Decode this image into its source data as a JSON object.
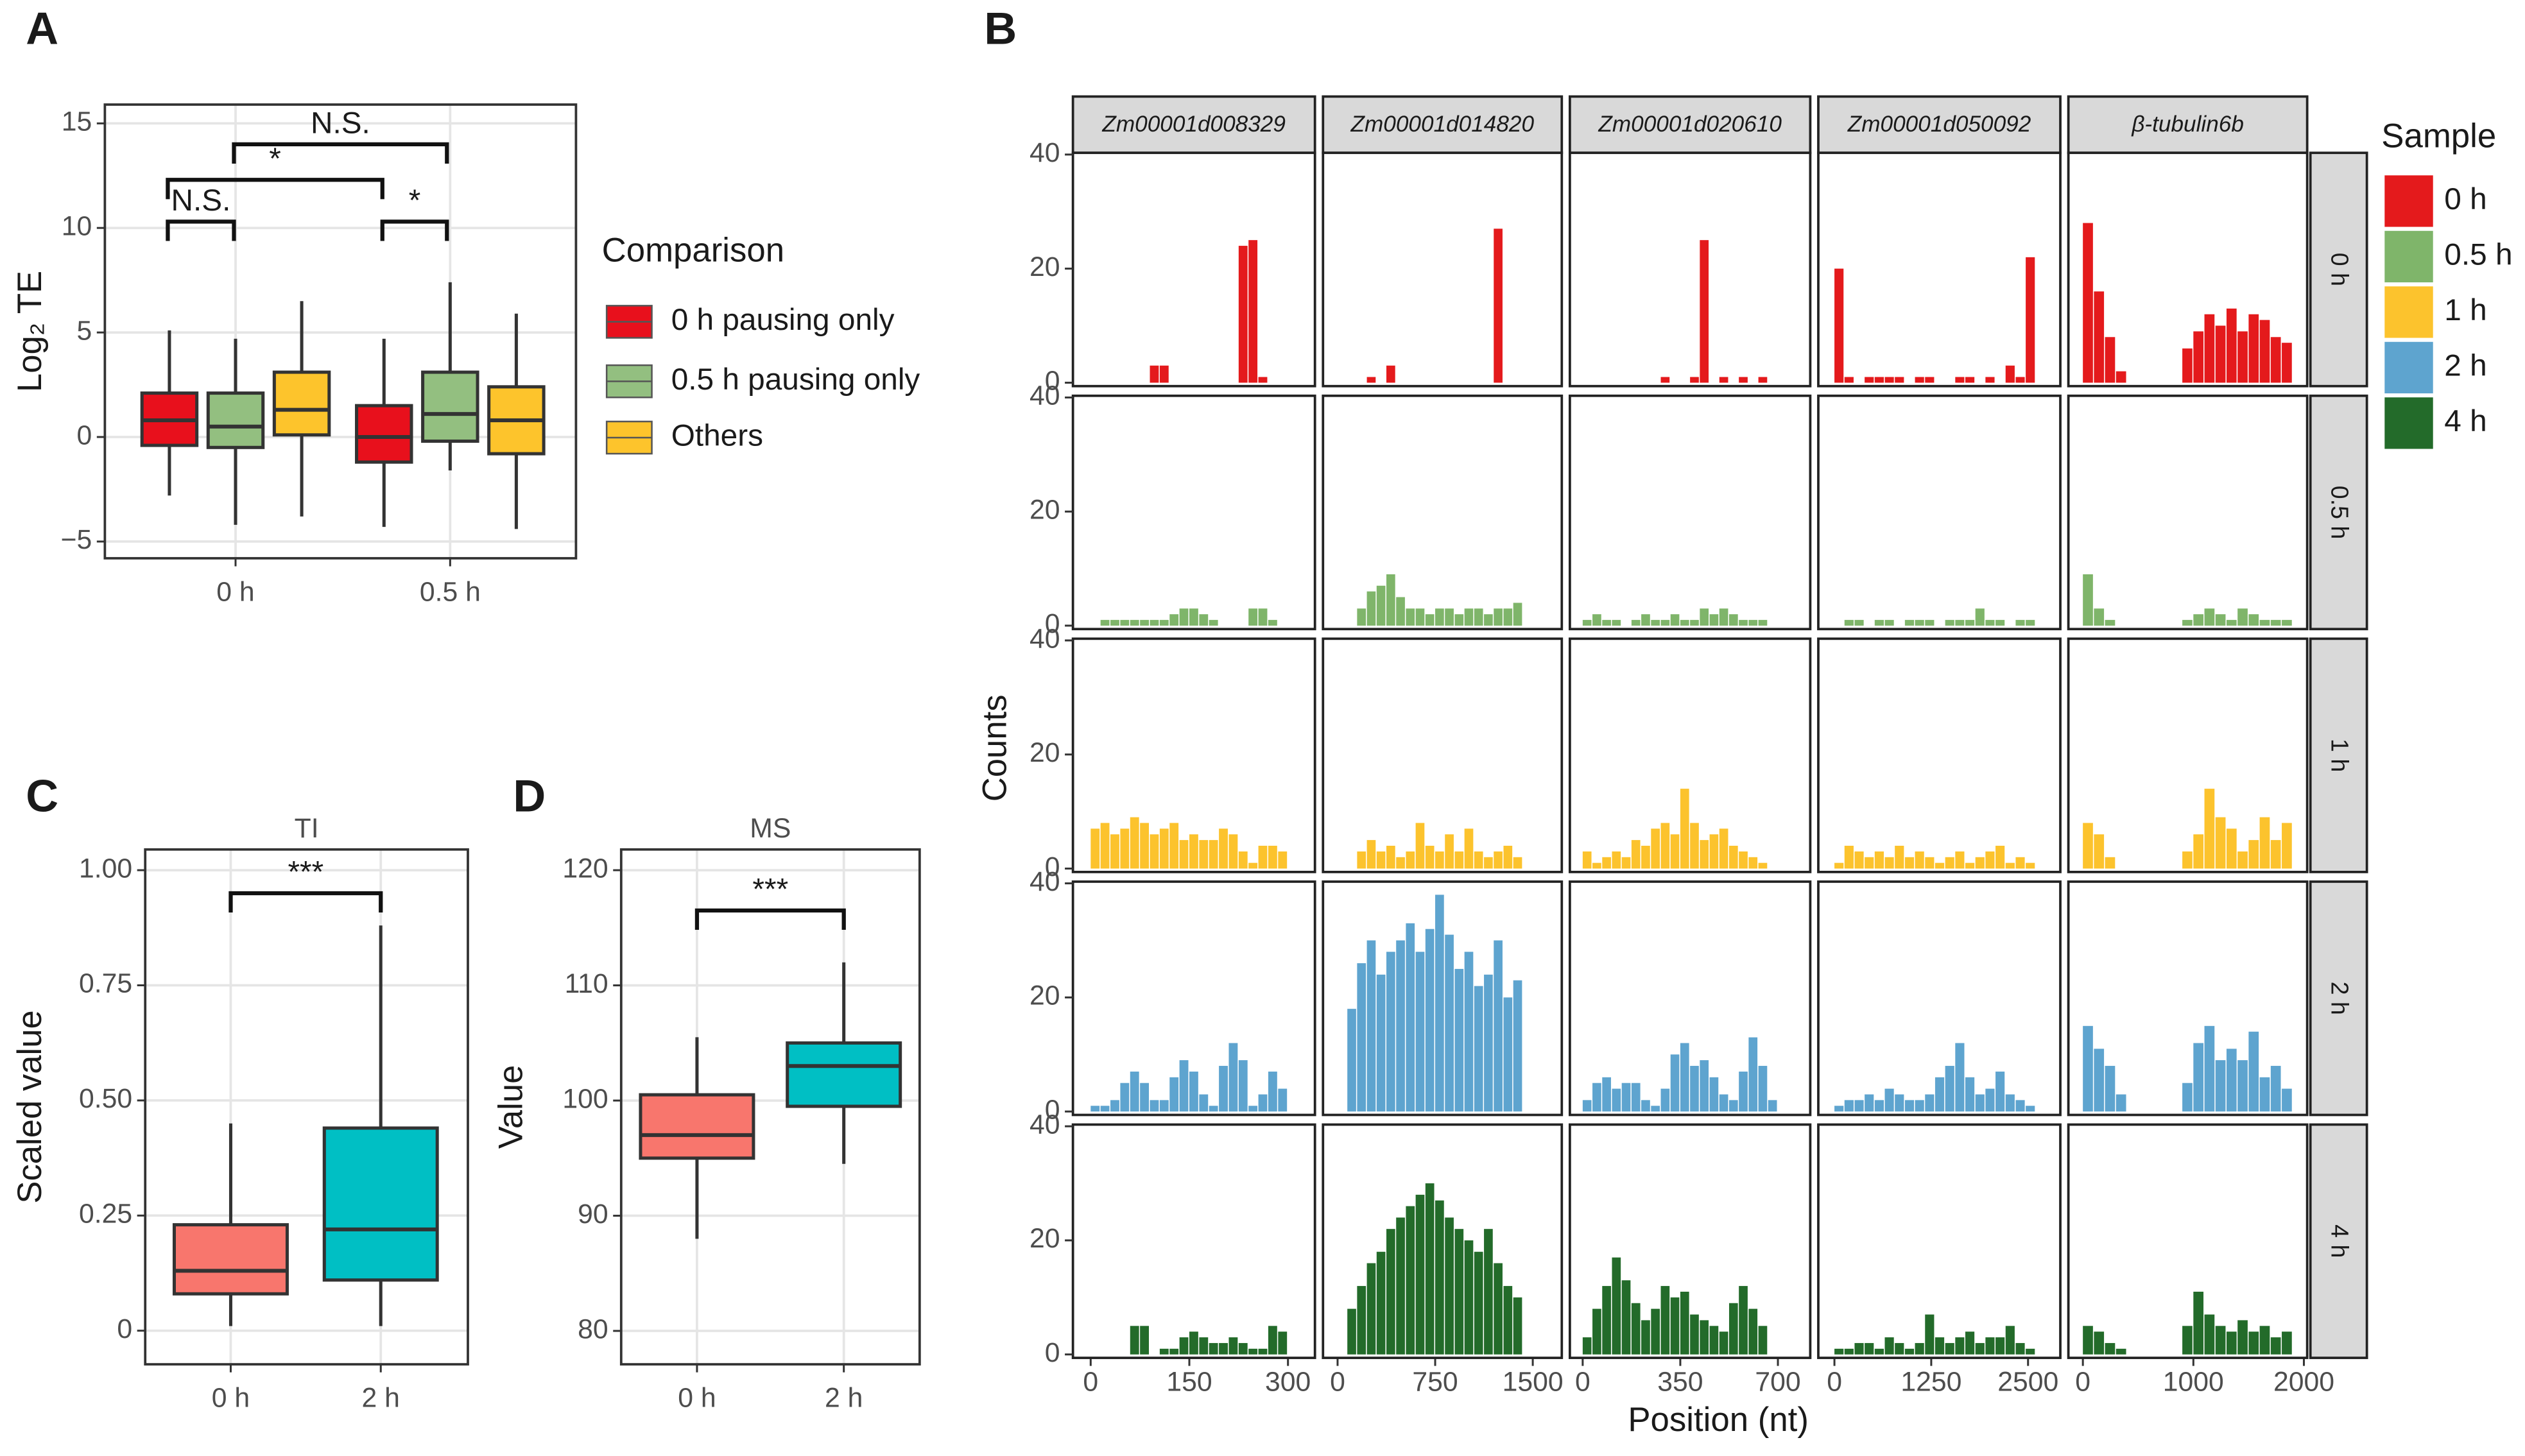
{
  "chart_data": [
    {
      "type": "box",
      "label": "A",
      "ylabel": "Log₂ TE",
      "legend_title": "Comparison",
      "categories": [
        "0 h",
        "0.5 h"
      ],
      "series": [
        {
          "name": "0 h pausing only",
          "color": "#e8101c",
          "values": [
            [
              -2.8,
              -0.4,
              0.8,
              2.1,
              5.1
            ],
            [
              -4.3,
              -1.2,
              0.0,
              1.5,
              4.7
            ]
          ]
        },
        {
          "name": "0.5 h pausing only",
          "color": "#93bf80",
          "values": [
            [
              -4.2,
              -0.5,
              0.5,
              2.1,
              4.7
            ],
            [
              -1.6,
              -0.2,
              1.1,
              3.1,
              7.4
            ]
          ]
        },
        {
          "name": "Others",
          "color": "#fdc42c",
          "values": [
            [
              -3.8,
              0.1,
              1.3,
              3.1,
              6.5
            ],
            [
              -4.4,
              -0.8,
              0.8,
              2.4,
              5.9
            ]
          ]
        }
      ],
      "ylim": [
        -5.8,
        15.9
      ],
      "yticks": [
        {
          "value": -5,
          "label": "−5"
        },
        0,
        5,
        10,
        15
      ],
      "grid": true,
      "annotations": [
        "N.S.",
        "*",
        "N.S.",
        "*"
      ]
    },
    {
      "type": "facet-histogram",
      "label": "B",
      "ylabel": "Counts",
      "xlabel": "Position (nt)",
      "legend_title": "Sample",
      "ylim": [
        -0.6,
        40.3
      ],
      "yticks": [
        0,
        20,
        40
      ],
      "columns": [
        {
          "name": "Zm00001d008329",
          "xlim": [
            -27,
            341
          ],
          "xticks": [
            0,
            150,
            300
          ],
          "bins": [
            0,
            15,
            30,
            45,
            60,
            75,
            90,
            105,
            120,
            135,
            150,
            165,
            180,
            195,
            210,
            225,
            240,
            255,
            270,
            285,
            300
          ]
        },
        {
          "name": "Zm00001d014820",
          "xlim": [
            -112,
            1723
          ],
          "xticks": [
            0,
            750,
            1500
          ],
          "bins": [
            0,
            75,
            150,
            225,
            300,
            375,
            450,
            525,
            600,
            675,
            750,
            825,
            900,
            975,
            1050,
            1125,
            1200,
            1275,
            1350,
            1425,
            1500
          ]
        },
        {
          "name": "Zm00001d020610",
          "xlim": [
            -46,
            816
          ],
          "xticks": [
            0,
            350,
            700
          ],
          "bins": [
            0,
            35,
            70,
            105,
            140,
            175,
            210,
            245,
            280,
            315,
            350,
            385,
            420,
            455,
            490,
            525,
            560,
            595,
            630,
            665,
            700
          ]
        },
        {
          "name": "Zm00001d050092",
          "xlim": [
            -208,
            2917
          ],
          "xticks": [
            0,
            1250,
            2500
          ],
          "bins": [
            0,
            130,
            260,
            390,
            520,
            650,
            780,
            910,
            1040,
            1170,
            1300,
            1430,
            1560,
            1690,
            1820,
            1950,
            2080,
            2210,
            2340,
            2470,
            2600
          ]
        },
        {
          "name": "β-tubulin6b",
          "xlim": [
            -131,
            2030
          ],
          "xticks": [
            0,
            1000,
            2000
          ],
          "bins": [
            0,
            100,
            200,
            300,
            400,
            500,
            600,
            700,
            800,
            900,
            1000,
            1100,
            1200,
            1300,
            1400,
            1500,
            1600,
            1700,
            1800,
            1900,
            2000
          ]
        }
      ],
      "series": [
        {
          "name": "0 h",
          "color": "#e41a1c",
          "values": [
            [
              0,
              0,
              0,
              0,
              0,
              0,
              3,
              3,
              0,
              0,
              0,
              0,
              0,
              0,
              0,
              24,
              25,
              1,
              0,
              0
            ],
            [
              0,
              0,
              0,
              1,
              0,
              3,
              0,
              0,
              0,
              0,
              0,
              0,
              0,
              0,
              0,
              0,
              27,
              0,
              0,
              0
            ],
            [
              0,
              0,
              0,
              0,
              0,
              0,
              0,
              0,
              1,
              0,
              0,
              1,
              25,
              0,
              1,
              0,
              1,
              0,
              1,
              0
            ],
            [
              20,
              1,
              0,
              1,
              1,
              1,
              1,
              0,
              1,
              1,
              0,
              0,
              1,
              1,
              0,
              1,
              0,
              3,
              1,
              22
            ],
            [
              28,
              16,
              8,
              2,
              0,
              0,
              0,
              0,
              0,
              6,
              9,
              12,
              10,
              13,
              9,
              12,
              11,
              8,
              7,
              0
            ]
          ]
        },
        {
          "name": "0.5 h",
          "color": "#7fb56a",
          "values": [
            [
              0,
              1,
              1,
              1,
              1,
              1,
              1,
              1,
              2,
              3,
              3,
              2,
              1,
              0,
              0,
              0,
              3,
              3,
              1,
              0
            ],
            [
              0,
              0,
              3,
              6,
              7,
              9,
              5,
              3,
              3,
              2,
              3,
              3,
              2,
              3,
              3,
              2,
              3,
              3,
              4,
              0
            ],
            [
              1,
              2,
              1,
              1,
              0,
              1,
              2,
              1,
              1,
              2,
              1,
              1,
              3,
              2,
              3,
              2,
              1,
              1,
              1,
              0
            ],
            [
              0,
              1,
              1,
              0,
              1,
              1,
              0,
              1,
              1,
              1,
              0,
              1,
              1,
              1,
              3,
              1,
              1,
              0,
              1,
              1
            ],
            [
              9,
              3,
              1,
              0,
              0,
              0,
              0,
              0,
              0,
              1,
              2,
              3,
              2,
              1,
              3,
              2,
              1,
              1,
              1,
              0
            ]
          ]
        },
        {
          "name": "1 h",
          "color": "#fcc32d",
          "values": [
            [
              7,
              8,
              6,
              7,
              9,
              8,
              6,
              7,
              8,
              5,
              6,
              5,
              5,
              7,
              6,
              3,
              1,
              4,
              4,
              3
            ],
            [
              0,
              0,
              3,
              5,
              3,
              4,
              2,
              3,
              8,
              4,
              3,
              6,
              3,
              7,
              3,
              2,
              3,
              4,
              2,
              0
            ],
            [
              3,
              1,
              2,
              3,
              2,
              5,
              4,
              7,
              8,
              6,
              14,
              8,
              5,
              6,
              7,
              4,
              3,
              2,
              1,
              0
            ],
            [
              1,
              4,
              3,
              2,
              3,
              2,
              4,
              2,
              3,
              2,
              1,
              2,
              3,
              1,
              2,
              3,
              4,
              1,
              2,
              1
            ],
            [
              8,
              6,
              2,
              0,
              0,
              0,
              0,
              0,
              0,
              3,
              6,
              14,
              9,
              7,
              3,
              5,
              9,
              5,
              8,
              0
            ]
          ]
        },
        {
          "name": "2 h",
          "color": "#5ea4cf",
          "values": [
            [
              1,
              1,
              2,
              5,
              7,
              5,
              2,
              2,
              6,
              9,
              7,
              3,
              1,
              8,
              12,
              9,
              1,
              3,
              7,
              4
            ],
            [
              0,
              18,
              26,
              30,
              24,
              28,
              30,
              33,
              28,
              32,
              38,
              31,
              25,
              28,
              22,
              24,
              30,
              20,
              23,
              0
            ],
            [
              2,
              5,
              6,
              4,
              5,
              5,
              2,
              1,
              4,
              10,
              12,
              8,
              9,
              6,
              3,
              2,
              7,
              13,
              8,
              2
            ],
            [
              1,
              2,
              2,
              3,
              2,
              4,
              3,
              2,
              2,
              3,
              6,
              8,
              12,
              6,
              3,
              4,
              7,
              3,
              2,
              1
            ],
            [
              15,
              11,
              8,
              3,
              0,
              0,
              0,
              0,
              0,
              5,
              12,
              15,
              9,
              11,
              9,
              14,
              6,
              8,
              4,
              0
            ]
          ]
        },
        {
          "name": "4 h",
          "color": "#236b2a",
          "values": [
            [
              0,
              0,
              0,
              0,
              5,
              5,
              0,
              1,
              1,
              3,
              4,
              3,
              2,
              2,
              3,
              2,
              1,
              1,
              5,
              4
            ],
            [
              0,
              8,
              12,
              16,
              18,
              22,
              24,
              26,
              28,
              30,
              27,
              24,
              22,
              20,
              18,
              22,
              16,
              12,
              10,
              0
            ],
            [
              3,
              8,
              12,
              17,
              13,
              9,
              6,
              8,
              12,
              10,
              11,
              7,
              6,
              5,
              4,
              9,
              12,
              8,
              5,
              0
            ],
            [
              1,
              1,
              2,
              2,
              1,
              3,
              2,
              1,
              2,
              7,
              3,
              2,
              3,
              4,
              2,
              3,
              3,
              5,
              2,
              1
            ],
            [
              5,
              4,
              2,
              1,
              0,
              0,
              0,
              0,
              0,
              5,
              11,
              7,
              5,
              4,
              6,
              4,
              5,
              3,
              4,
              0
            ]
          ]
        }
      ]
    },
    {
      "type": "box",
      "label": "C",
      "title": "TI",
      "ylabel": "Scaled value",
      "categories": [
        "0 h",
        "2 h"
      ],
      "colors": [
        "#f8766d",
        "#00bfc4"
      ],
      "values": [
        [
          0.01,
          0.08,
          0.13,
          0.23,
          0.45
        ],
        [
          0.01,
          0.11,
          0.22,
          0.44,
          0.88
        ]
      ],
      "ylim": [
        -0.073,
        1.045
      ],
      "yticks": [
        0,
        0.25,
        {
          "value": 0.5,
          "label": "0.50"
        },
        0.75,
        {
          "value": 1,
          "label": "1.00"
        }
      ],
      "grid": true,
      "annotations": [
        "***"
      ]
    },
    {
      "type": "box",
      "label": "D",
      "title": "MS",
      "ylabel": "Value",
      "categories": [
        "0 h",
        "2 h"
      ],
      "colors": [
        "#f8766d",
        "#00bfc4"
      ],
      "values": [
        [
          88,
          95,
          97,
          100.5,
          105.5
        ],
        [
          94.5,
          99.5,
          103,
          105,
          112
        ]
      ],
      "ylim": [
        77.1,
        121.8
      ],
      "yticks": [
        80,
        90,
        100,
        110,
        120
      ],
      "grid": true,
      "annotations": [
        "***"
      ]
    }
  ]
}
